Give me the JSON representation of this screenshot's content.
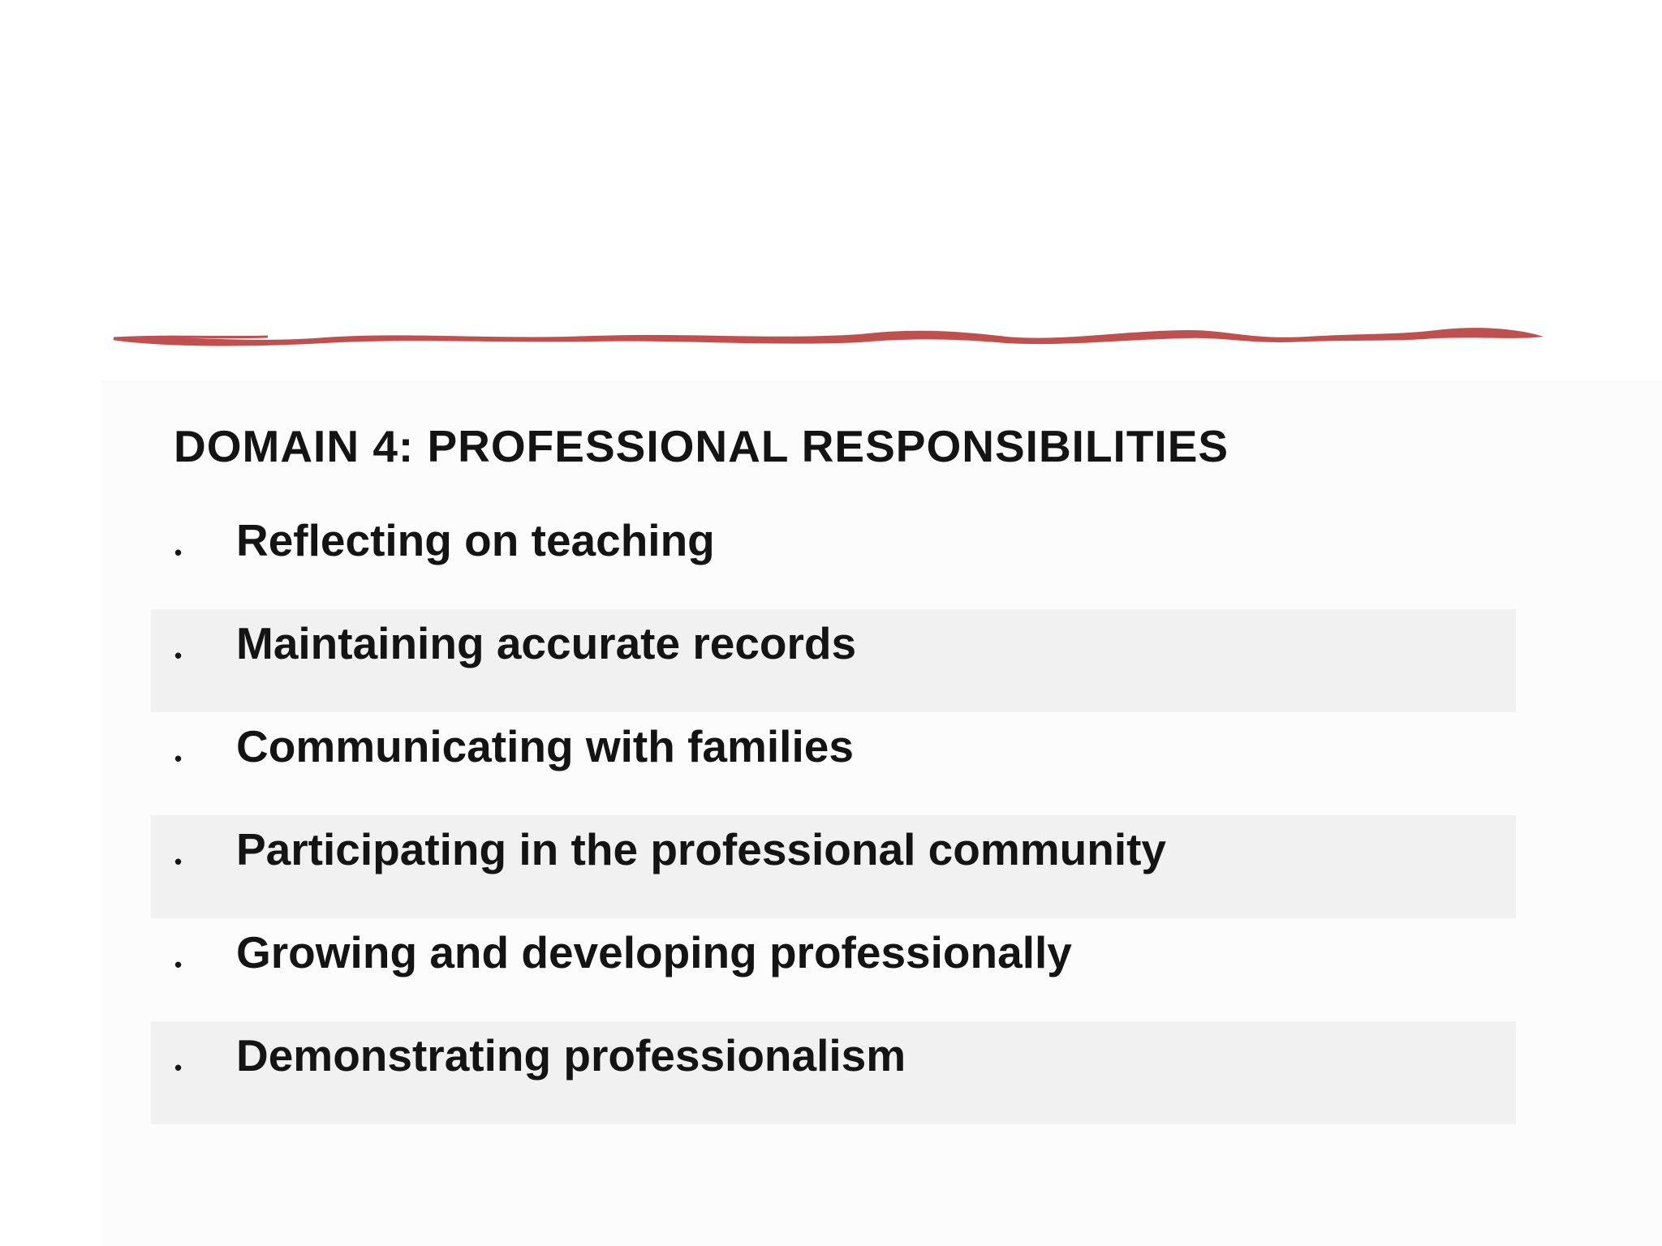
{
  "slide": {
    "title": "DOMAIN 4: PROFESSIONAL RESPONSIBILITIES",
    "bullet_glyph": "•",
    "items": [
      {
        "label": "Reflecting on teaching",
        "shaded": false
      },
      {
        "label": "Maintaining accurate records",
        "shaded": true
      },
      {
        "label": "Communicating with families",
        "shaded": false
      },
      {
        "label": "Participating in the professional community",
        "shaded": true
      },
      {
        "label": "Growing and developing professionally",
        "shaded": false
      },
      {
        "label": "Demonstrating professionalism",
        "shaded": true
      }
    ]
  },
  "colors": {
    "accent_stroke": "#c0504d",
    "text": "#141414",
    "row_shade": "#f2f1f2",
    "panel": "#fcfcfc"
  }
}
